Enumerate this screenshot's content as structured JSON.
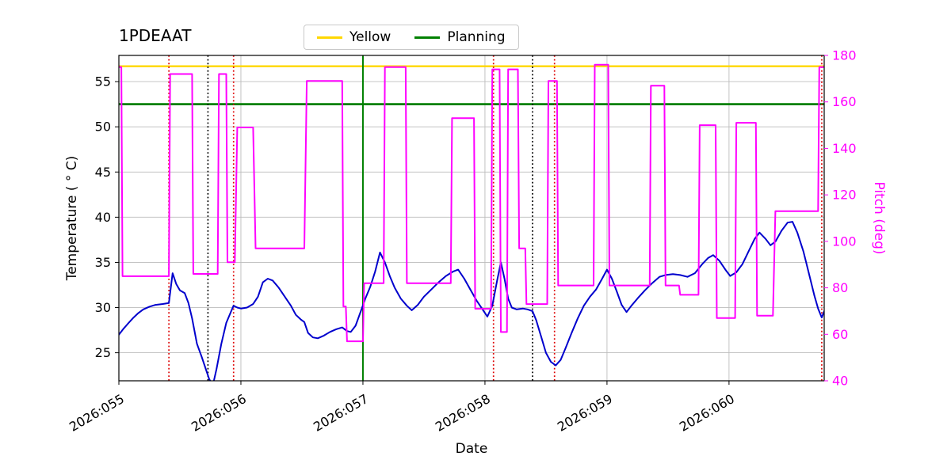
{
  "title": "1PDEAAT",
  "legend": {
    "items": [
      {
        "label": "Yellow",
        "color": "#ffd700"
      },
      {
        "label": "Planning",
        "color": "#008000"
      }
    ]
  },
  "axes": {
    "x_label": "Date",
    "y_left_label": "Temperature ( ° C)",
    "y_right_label": "Pitch (deg)",
    "y_right_color": "#ff00ff",
    "x_tick_values": [
      55,
      56,
      57,
      58,
      59,
      60
    ],
    "x_tick_labels": [
      "2026:055",
      "2026:056",
      "2026:057",
      "2026:058",
      "2026:059",
      "2026:060"
    ],
    "y_left_ticks": [
      25,
      30,
      35,
      40,
      45,
      50,
      55
    ],
    "y_right_ticks": [
      40,
      60,
      80,
      100,
      120,
      140,
      160,
      180
    ],
    "xlim": [
      55.0,
      60.78
    ],
    "y_left_lim": [
      21.9,
      57.9
    ],
    "y_right_lim": [
      40,
      180
    ],
    "grid": true,
    "grid_color": "#bcbcbc"
  },
  "chart_data": {
    "type": "line",
    "title": "1PDEAAT",
    "xlabel": "Date",
    "ylabel_left": "Temperature ( ° C)",
    "ylabel_right": "Pitch (deg)",
    "series": [
      {
        "name": "temperature",
        "axis": "left",
        "color": "#0000cd",
        "points": [
          [
            55.0,
            27.0
          ],
          [
            55.04,
            27.7
          ],
          [
            55.08,
            28.3
          ],
          [
            55.12,
            28.9
          ],
          [
            55.16,
            29.4
          ],
          [
            55.2,
            29.8
          ],
          [
            55.25,
            30.1
          ],
          [
            55.3,
            30.3
          ],
          [
            55.36,
            30.4
          ],
          [
            55.41,
            30.5
          ],
          [
            55.44,
            33.8
          ],
          [
            55.47,
            32.6
          ],
          [
            55.5,
            31.9
          ],
          [
            55.54,
            31.6
          ],
          [
            55.57,
            30.5
          ],
          [
            55.6,
            28.8
          ],
          [
            55.64,
            26.0
          ],
          [
            55.68,
            24.5
          ],
          [
            55.71,
            23.3
          ],
          [
            55.74,
            22.1
          ],
          [
            55.77,
            21.4
          ],
          [
            55.8,
            23.2
          ],
          [
            55.84,
            26.0
          ],
          [
            55.88,
            28.3
          ],
          [
            55.92,
            29.6
          ],
          [
            55.94,
            30.2
          ],
          [
            55.97,
            30.0
          ],
          [
            56.0,
            29.9
          ],
          [
            56.05,
            30.0
          ],
          [
            56.1,
            30.4
          ],
          [
            56.14,
            31.2
          ],
          [
            56.18,
            32.8
          ],
          [
            56.22,
            33.2
          ],
          [
            56.26,
            33.0
          ],
          [
            56.31,
            32.2
          ],
          [
            56.36,
            31.2
          ],
          [
            56.41,
            30.2
          ],
          [
            56.45,
            29.2
          ],
          [
            56.49,
            28.7
          ],
          [
            56.52,
            28.4
          ],
          [
            56.55,
            27.2
          ],
          [
            56.59,
            26.7
          ],
          [
            56.63,
            26.6
          ],
          [
            56.68,
            26.9
          ],
          [
            56.73,
            27.3
          ],
          [
            56.78,
            27.6
          ],
          [
            56.83,
            27.8
          ],
          [
            56.87,
            27.4
          ],
          [
            56.9,
            27.3
          ],
          [
            56.94,
            28.0
          ],
          [
            56.98,
            29.5
          ],
          [
            57.02,
            31.0
          ],
          [
            57.06,
            32.3
          ],
          [
            57.1,
            34.0
          ],
          [
            57.14,
            36.1
          ],
          [
            57.18,
            35.0
          ],
          [
            57.22,
            33.5
          ],
          [
            57.26,
            32.2
          ],
          [
            57.31,
            31.0
          ],
          [
            57.36,
            30.2
          ],
          [
            57.4,
            29.7
          ],
          [
            57.45,
            30.3
          ],
          [
            57.5,
            31.2
          ],
          [
            57.56,
            32.0
          ],
          [
            57.62,
            32.8
          ],
          [
            57.68,
            33.5
          ],
          [
            57.74,
            34.0
          ],
          [
            57.78,
            34.2
          ],
          [
            57.83,
            33.2
          ],
          [
            57.88,
            32.0
          ],
          [
            57.93,
            30.8
          ],
          [
            57.98,
            29.8
          ],
          [
            58.02,
            29.0
          ],
          [
            58.06,
            30.2
          ],
          [
            58.1,
            33.0
          ],
          [
            58.13,
            35.0
          ],
          [
            58.16,
            33.2
          ],
          [
            58.19,
            31.0
          ],
          [
            58.22,
            30.0
          ],
          [
            58.26,
            29.8
          ],
          [
            58.31,
            29.9
          ],
          [
            58.35,
            29.8
          ],
          [
            58.39,
            29.6
          ],
          [
            58.42,
            28.6
          ],
          [
            58.46,
            26.8
          ],
          [
            58.5,
            25.0
          ],
          [
            58.54,
            24.0
          ],
          [
            58.58,
            23.6
          ],
          [
            58.62,
            24.2
          ],
          [
            58.66,
            25.5
          ],
          [
            58.71,
            27.2
          ],
          [
            58.76,
            28.8
          ],
          [
            58.81,
            30.2
          ],
          [
            58.86,
            31.2
          ],
          [
            58.91,
            32.0
          ],
          [
            58.96,
            33.2
          ],
          [
            59.0,
            34.2
          ],
          [
            59.04,
            33.2
          ],
          [
            59.08,
            31.8
          ],
          [
            59.12,
            30.3
          ],
          [
            59.16,
            29.5
          ],
          [
            59.2,
            30.2
          ],
          [
            59.25,
            31.0
          ],
          [
            59.31,
            31.9
          ],
          [
            59.37,
            32.7
          ],
          [
            59.43,
            33.4
          ],
          [
            59.48,
            33.6
          ],
          [
            59.54,
            33.7
          ],
          [
            59.6,
            33.6
          ],
          [
            59.66,
            33.4
          ],
          [
            59.72,
            33.8
          ],
          [
            59.78,
            34.8
          ],
          [
            59.83,
            35.5
          ],
          [
            59.87,
            35.8
          ],
          [
            59.92,
            35.2
          ],
          [
            59.97,
            34.2
          ],
          [
            60.01,
            33.5
          ],
          [
            60.06,
            33.9
          ],
          [
            60.11,
            34.8
          ],
          [
            60.16,
            36.2
          ],
          [
            60.21,
            37.6
          ],
          [
            60.25,
            38.3
          ],
          [
            60.3,
            37.6
          ],
          [
            60.34,
            36.9
          ],
          [
            60.38,
            37.3
          ],
          [
            60.43,
            38.5
          ],
          [
            60.48,
            39.4
          ],
          [
            60.52,
            39.5
          ],
          [
            60.56,
            38.3
          ],
          [
            60.61,
            36.2
          ],
          [
            60.66,
            33.5
          ],
          [
            60.7,
            31.3
          ],
          [
            60.73,
            29.9
          ],
          [
            60.76,
            28.9
          ],
          [
            60.78,
            29.6
          ]
        ]
      },
      {
        "name": "pitch",
        "axis": "right",
        "color": "#ff00ff",
        "points": [
          [
            55.0,
            175
          ],
          [
            55.02,
            175
          ],
          [
            55.03,
            85
          ],
          [
            55.41,
            85
          ],
          [
            55.42,
            172
          ],
          [
            55.6,
            172
          ],
          [
            55.61,
            86
          ],
          [
            55.81,
            86
          ],
          [
            55.82,
            172
          ],
          [
            55.88,
            172
          ],
          [
            55.89,
            91
          ],
          [
            55.95,
            91
          ],
          [
            55.97,
            149
          ],
          [
            56.1,
            149
          ],
          [
            56.12,
            97
          ],
          [
            56.52,
            97
          ],
          [
            56.54,
            169
          ],
          [
            56.83,
            169
          ],
          [
            56.84,
            72
          ],
          [
            56.86,
            72
          ],
          [
            56.87,
            57
          ],
          [
            57.0,
            57
          ],
          [
            57.01,
            82
          ],
          [
            57.17,
            82
          ],
          [
            57.18,
            175
          ],
          [
            57.35,
            175
          ],
          [
            57.36,
            82
          ],
          [
            57.72,
            82
          ],
          [
            57.73,
            153
          ],
          [
            57.91,
            153
          ],
          [
            57.92,
            71
          ],
          [
            58.05,
            71
          ],
          [
            58.06,
            174
          ],
          [
            58.12,
            174
          ],
          [
            58.13,
            61
          ],
          [
            58.18,
            61
          ],
          [
            58.19,
            174
          ],
          [
            58.27,
            174
          ],
          [
            58.28,
            97
          ],
          [
            58.33,
            97
          ],
          [
            58.34,
            73
          ],
          [
            58.51,
            73
          ],
          [
            58.52,
            169
          ],
          [
            58.59,
            169
          ],
          [
            58.6,
            81
          ],
          [
            58.89,
            81
          ],
          [
            58.9,
            176
          ],
          [
            59.01,
            176
          ],
          [
            59.02,
            81
          ],
          [
            59.35,
            81
          ],
          [
            59.36,
            167
          ],
          [
            59.47,
            167
          ],
          [
            59.48,
            81
          ],
          [
            59.59,
            81
          ],
          [
            59.6,
            77
          ],
          [
            59.75,
            77
          ],
          [
            59.76,
            150
          ],
          [
            59.89,
            150
          ],
          [
            59.9,
            67
          ],
          [
            60.05,
            67
          ],
          [
            60.06,
            151
          ],
          [
            60.22,
            151
          ],
          [
            60.23,
            68
          ],
          [
            60.36,
            68
          ],
          [
            60.38,
            113
          ],
          [
            60.73,
            113
          ],
          [
            60.74,
            175
          ],
          [
            60.78,
            175
          ]
        ]
      }
    ],
    "hlines": [
      {
        "name": "yellow-limit",
        "label": "Yellow",
        "axis": "left",
        "y": 56.7,
        "color": "#ffd700",
        "style": "solid",
        "width": 2.4
      },
      {
        "name": "planning-limit",
        "label": "Planning",
        "axis": "left",
        "y": 52.5,
        "color": "#008000",
        "style": "solid",
        "width": 2.8
      }
    ],
    "vlines": [
      {
        "x": 55.41,
        "color": "#dd0000",
        "style": "dotted"
      },
      {
        "x": 55.73,
        "color": "#000000",
        "style": "dotted"
      },
      {
        "x": 55.94,
        "color": "#dd0000",
        "style": "dotted"
      },
      {
        "x": 57.0,
        "color": "#008000",
        "style": "solid"
      },
      {
        "x": 58.07,
        "color": "#dd0000",
        "style": "dotted"
      },
      {
        "x": 58.39,
        "color": "#000000",
        "style": "dotted"
      },
      {
        "x": 58.57,
        "color": "#dd0000",
        "style": "dotted"
      },
      {
        "x": 60.76,
        "color": "#dd0000",
        "style": "dotted"
      }
    ]
  }
}
